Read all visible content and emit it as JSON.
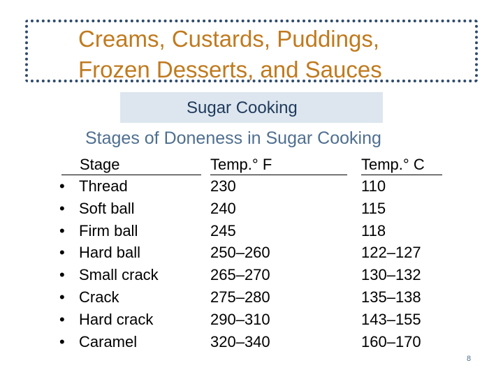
{
  "title": {
    "line1": "Creams, Custards, Puddings,",
    "line2": "Frozen Desserts, and Sauces"
  },
  "subtitle": "Sugar Cooking",
  "heading": "Stages of Doneness in Sugar Cooking",
  "table": {
    "headers": [
      "Stage",
      "Temp.° F",
      "Temp.° C"
    ],
    "rows": [
      [
        "Thread",
        "230",
        "110"
      ],
      [
        "Soft ball",
        "240",
        "115"
      ],
      [
        "Firm ball",
        "245",
        "118"
      ],
      [
        "Hard ball",
        "250–260",
        "122–127"
      ],
      [
        "Small crack",
        "265–270",
        "130–132"
      ],
      [
        "Crack",
        "275–280",
        "135–138"
      ],
      [
        "Hard crack",
        "290–310",
        "143–155"
      ],
      [
        "Caramel",
        "320–340",
        "160–170"
      ]
    ]
  },
  "page_number": "8",
  "colors": {
    "title": "#c07a1e",
    "frame": "#2e4a6b",
    "subtitle_bg": "#dde6ef",
    "heading": "#4f6f90"
  }
}
